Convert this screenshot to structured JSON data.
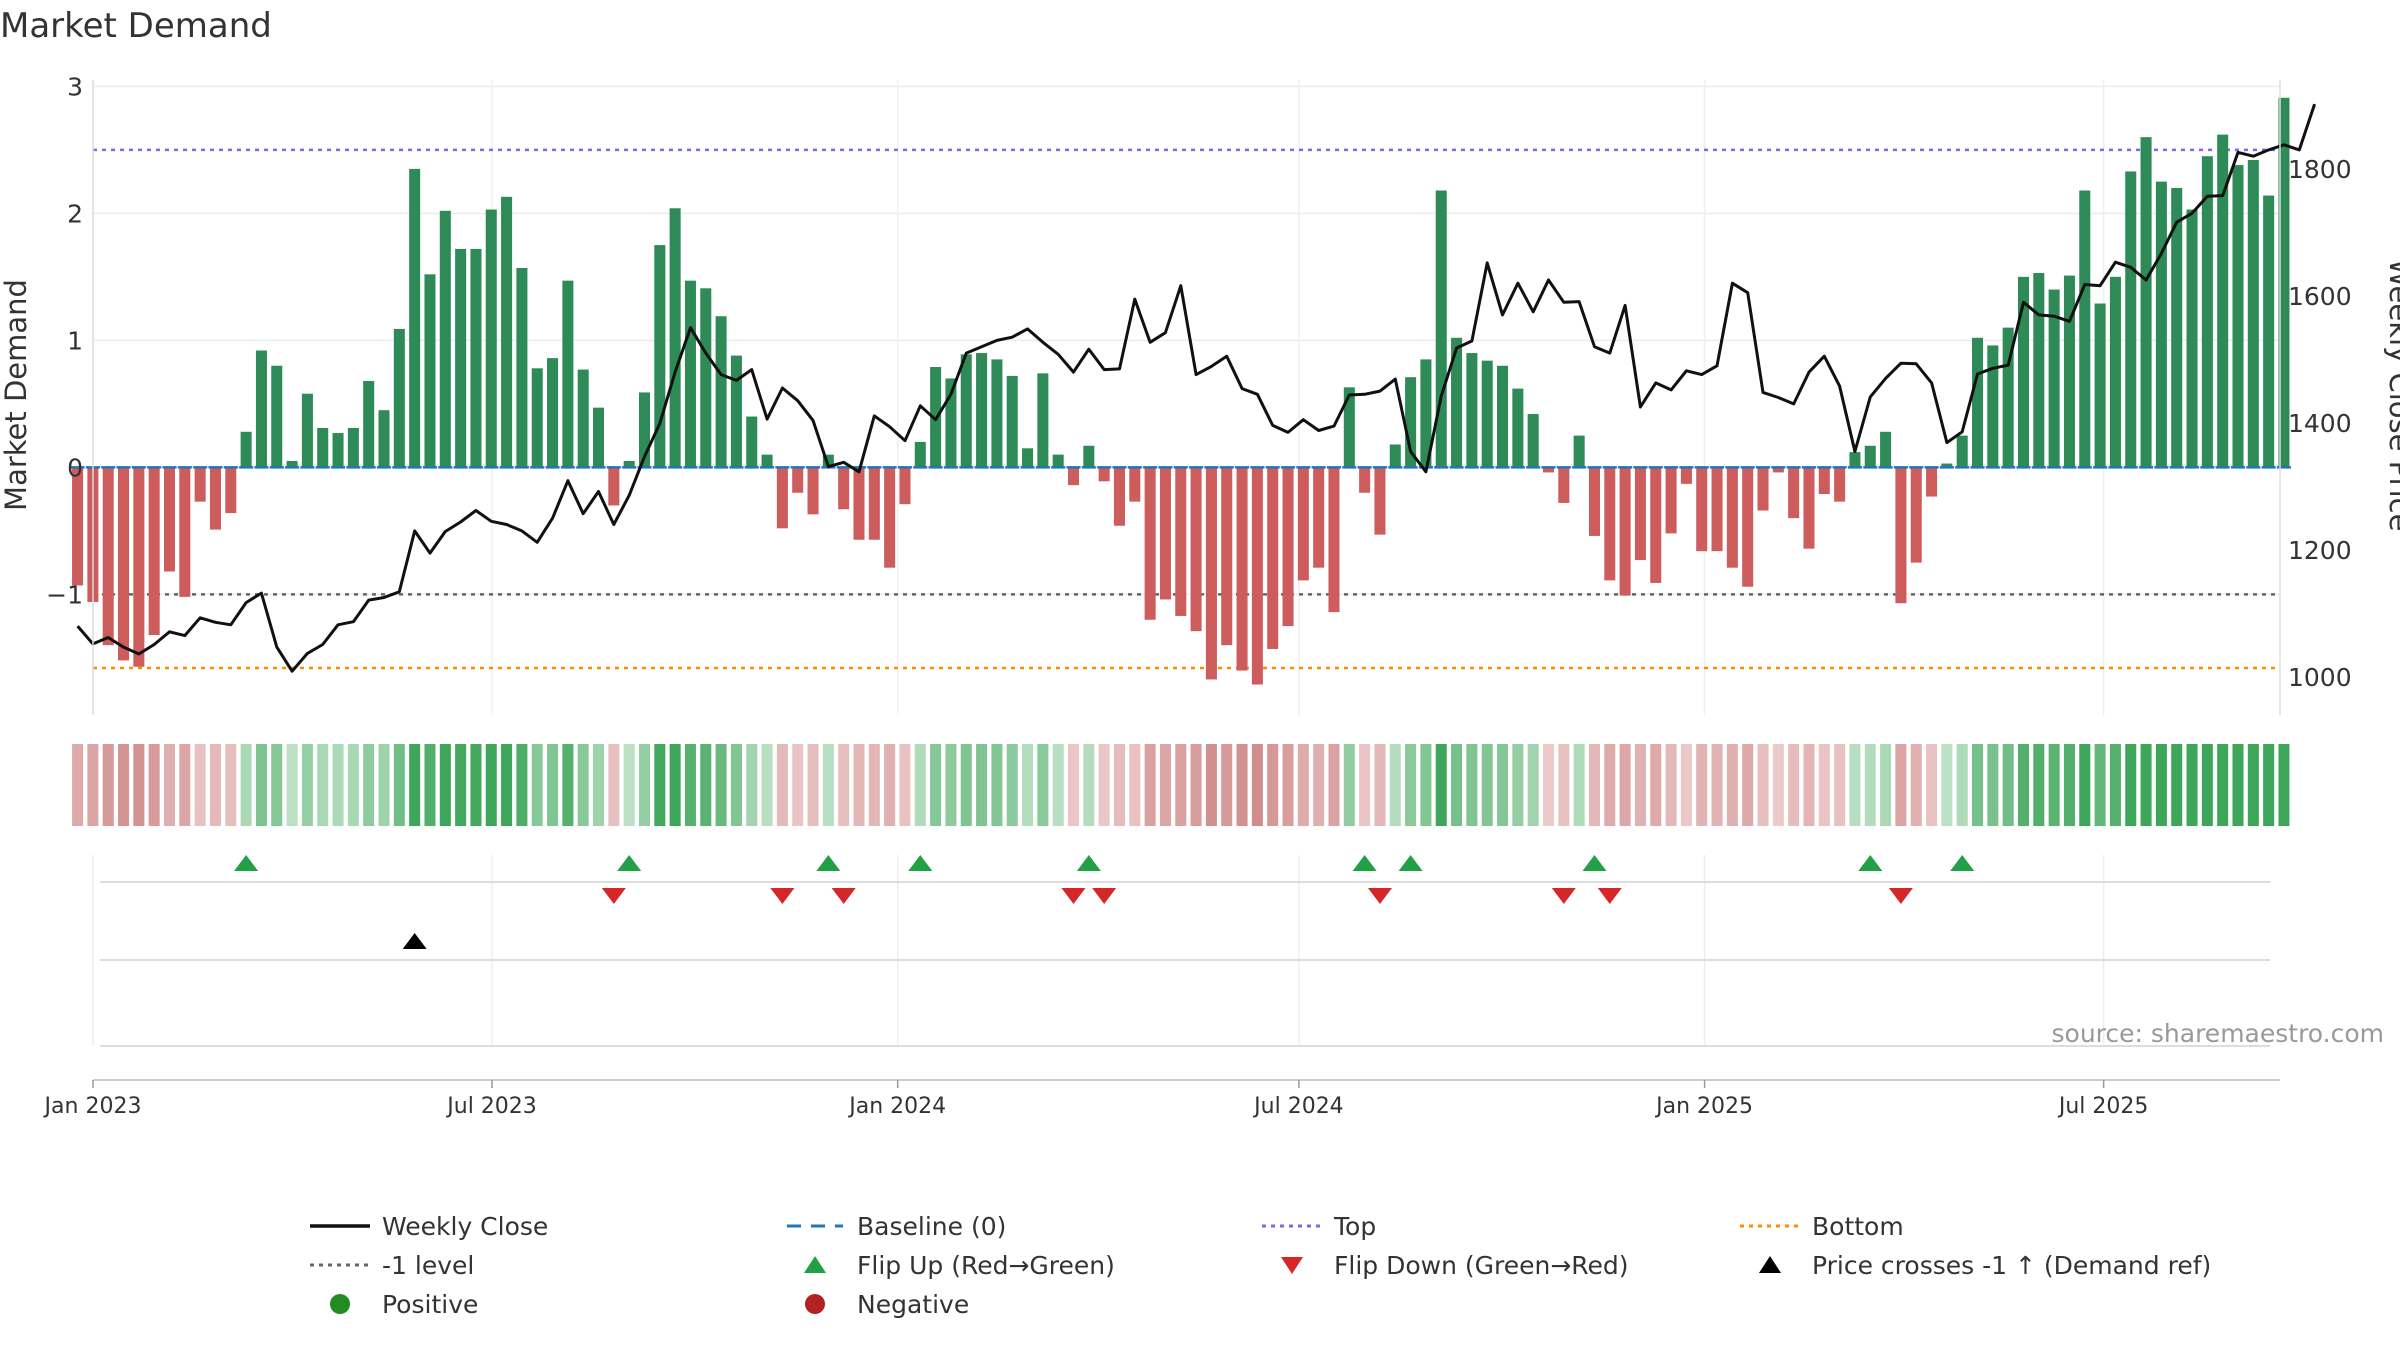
{
  "chart_data": {
    "type": "bar",
    "title": "Market Demand",
    "ylabel": "Market Demand",
    "y2label": "Weekly Close Price",
    "ylim": [
      -1.95,
      3.05
    ],
    "yticks": [
      -1,
      0,
      1,
      2,
      3
    ],
    "ytick_labels": [
      "−1",
      "0",
      "1",
      "2",
      "3"
    ],
    "y2lim": [
      940,
      1940
    ],
    "y2ticks": [
      1000,
      1200,
      1400,
      1600,
      1800
    ],
    "y2tick_labels": [
      "1000",
      "1200",
      "1400",
      "1600",
      "1800"
    ],
    "x_start": "2023-01-01",
    "x_end": "2025-09-19",
    "xticks": [
      "2023-01-01",
      "2023-07-01",
      "2024-01-01",
      "2024-07-01",
      "2025-01-01",
      "2025-07-01"
    ],
    "xtick_labels": [
      "Jan 2023",
      "Jul 2023",
      "Jan 2024",
      "Jul 2024",
      "Jan 2025",
      "Jul 2025"
    ],
    "first_week": "2022-12-25",
    "week_days": 6.95,
    "reference_lines": {
      "top": 2.5,
      "bottom": -1.58,
      "minus_one": -1,
      "baseline": 0
    },
    "colors": {
      "positive": "#2e8b57",
      "negative": "#cd5c5c",
      "close": "#111111",
      "baseline": "#1f77b4",
      "top": "#7b68ee",
      "bottom": "#ff8c00",
      "minus_one": "#666666",
      "flip_up": "#22a045",
      "flip_down": "#d62728",
      "cross": "#000000",
      "pos_dot": "#228b22",
      "neg_dot": "#b22222"
    },
    "series": [
      {
        "name": "Market Demand",
        "values": [
          -0.93,
          -1.06,
          -1.4,
          -1.52,
          -1.57,
          -1.32,
          -0.82,
          -1.02,
          -0.27,
          -0.49,
          -0.36,
          0.28,
          0.92,
          0.8,
          0.05,
          0.58,
          0.31,
          0.27,
          0.31,
          0.68,
          0.45,
          1.09,
          2.35,
          1.52,
          2.02,
          1.72,
          1.72,
          2.03,
          2.13,
          1.57,
          0.78,
          0.86,
          1.47,
          0.77,
          0.47,
          -0.3,
          0.05,
          0.59,
          1.75,
          2.04,
          1.47,
          1.41,
          1.19,
          0.88,
          0.4,
          0.1,
          -0.48,
          -0.2,
          -0.37,
          0.1,
          -0.33,
          -0.57,
          -0.57,
          -0.79,
          -0.29,
          0.2,
          0.79,
          0.7,
          0.89,
          0.9,
          0.85,
          0.72,
          0.15,
          0.74,
          0.1,
          -0.14,
          0.17,
          -0.11,
          -0.46,
          -0.27,
          -1.2,
          -1.04,
          -1.17,
          -1.29,
          -1.67,
          -1.4,
          -1.6,
          -1.71,
          -1.43,
          -1.25,
          -0.89,
          -0.79,
          -1.14,
          0.63,
          -0.2,
          -0.53,
          0.18,
          0.71,
          0.85,
          2.18,
          1.02,
          0.9,
          0.84,
          0.8,
          0.62,
          0.42,
          -0.04,
          -0.28,
          0.25,
          -0.54,
          -0.89,
          -1.01,
          -0.73,
          -0.91,
          -0.52,
          -0.13,
          -0.66,
          -0.66,
          -0.79,
          -0.94,
          -0.34,
          -0.04,
          -0.4,
          -0.64,
          -0.21,
          -0.27,
          0.12,
          0.17,
          0.28,
          -1.07,
          -0.75,
          -0.23,
          0.03,
          0.25,
          1.02,
          0.96,
          1.1,
          1.5,
          1.53,
          1.4,
          1.51,
          2.18,
          1.29,
          1.5,
          2.33,
          2.6,
          2.25,
          2.2,
          2.03,
          2.45,
          2.62,
          2.38,
          2.42,
          2.14,
          2.91
        ]
      },
      {
        "name": "Weekly Close",
        "values": [
          1080,
          1052,
          1062,
          1047,
          1036,
          1051,
          1071,
          1065,
          1093,
          1086,
          1082,
          1117,
          1132,
          1047,
          1009,
          1037,
          1051,
          1082,
          1087,
          1121,
          1125,
          1134,
          1230,
          1195,
          1229,
          1244,
          1262,
          1245,
          1240,
          1230,
          1212,
          1250,
          1309,
          1257,
          1292,
          1240,
          1286,
          1347,
          1399,
          1480,
          1550,
          1510,
          1476,
          1467,
          1484,
          1406,
          1455,
          1435,
          1404,
          1331,
          1338,
          1323,
          1411,
          1394,
          1372,
          1427,
          1405,
          1445,
          1510,
          1520,
          1530,
          1535,
          1548,
          1527,
          1508,
          1480,
          1516,
          1484,
          1485,
          1595,
          1527,
          1542,
          1616,
          1476,
          1489,
          1505,
          1454,
          1445,
          1396,
          1385,
          1405,
          1388,
          1395,
          1444,
          1445,
          1450,
          1469,
          1355,
          1323,
          1442,
          1518,
          1529,
          1652,
          1570,
          1620,
          1575,
          1625,
          1590,
          1591,
          1520,
          1510,
          1585,
          1425,
          1463,
          1452,
          1482,
          1476,
          1490,
          1620,
          1605,
          1448,
          1440,
          1430,
          1480,
          1505,
          1458,
          1355,
          1441,
          1470,
          1494,
          1493,
          1463,
          1369,
          1386,
          1477,
          1486,
          1491,
          1590,
          1570,
          1568,
          1560,
          1618,
          1616,
          1653,
          1645,
          1625,
          1667,
          1716,
          1730,
          1757,
          1758,
          1826,
          1820,
          1830,
          1838,
          1830,
          1902
        ]
      }
    ],
    "flip_up_weeks": [
      11,
      36,
      49,
      55,
      66,
      84,
      87,
      99,
      117,
      123
    ],
    "flip_down_weeks": [
      35,
      46,
      50,
      65,
      67,
      85,
      97,
      100,
      119
    ],
    "cross_weeks": [
      22
    ],
    "source": "source: sharemaestro.com",
    "legend": {
      "placement": "bottom",
      "entries": [
        {
          "label": "Weekly Close",
          "marker": "line-solid",
          "color": "#111111"
        },
        {
          "label": "Baseline (0)",
          "marker": "line-dash",
          "color": "#1f77b4"
        },
        {
          "label": "Top",
          "marker": "line-dot",
          "color": "#7b68ee"
        },
        {
          "label": "Bottom",
          "marker": "line-dot",
          "color": "#ff8c00"
        },
        {
          "label": "-1 level",
          "marker": "line-dot",
          "color": "#666666"
        },
        {
          "label": "Flip Up (Red→Green)",
          "marker": "tri-up",
          "color": "#22a045"
        },
        {
          "label": "Flip Down (Green→Red)",
          "marker": "tri-down",
          "color": "#d62728"
        },
        {
          "label": "Price crosses -1 ↑ (Demand ref)",
          "marker": "tri-up",
          "color": "#000000"
        },
        {
          "label": "Positive",
          "marker": "dot",
          "color": "#228b22"
        },
        {
          "label": "Negative",
          "marker": "dot",
          "color": "#b22222"
        }
      ]
    }
  }
}
